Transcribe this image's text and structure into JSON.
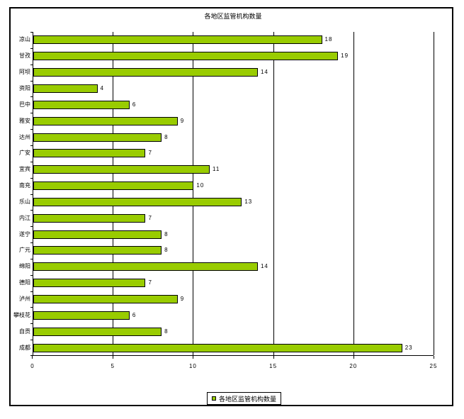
{
  "title": "各地区监管机构数量",
  "legend": {
    "label": "各地区监管机构数量"
  },
  "colors": {
    "bar_fill": "#99CC00",
    "bar_border": "#000000",
    "axis": "#000000",
    "background": "#FFFFFF"
  },
  "chart_data": {
    "type": "bar",
    "orientation": "horizontal",
    "title": "各地区监管机构数量",
    "xlabel": "",
    "ylabel": "",
    "categories": [
      "凉山",
      "甘孜",
      "阿坝",
      "资阳",
      "巴中",
      "雅安",
      "达州",
      "广安",
      "宜宾",
      "南充",
      "乐山",
      "内江",
      "遂宁",
      "广元",
      "绵阳",
      "德阳",
      "泸州",
      "攀枝花",
      "自贡",
      "成都"
    ],
    "values": [
      18,
      19,
      14,
      4,
      6,
      9,
      8,
      7,
      11,
      10,
      13,
      7,
      8,
      8,
      14,
      7,
      9,
      6,
      8,
      23
    ],
    "xlim": [
      0,
      25
    ],
    "xticks": [
      0,
      5,
      10,
      15,
      20,
      25
    ],
    "grid": true,
    "legend_position": "bottom",
    "legend_entries": [
      "各地区监管机构数量"
    ]
  }
}
